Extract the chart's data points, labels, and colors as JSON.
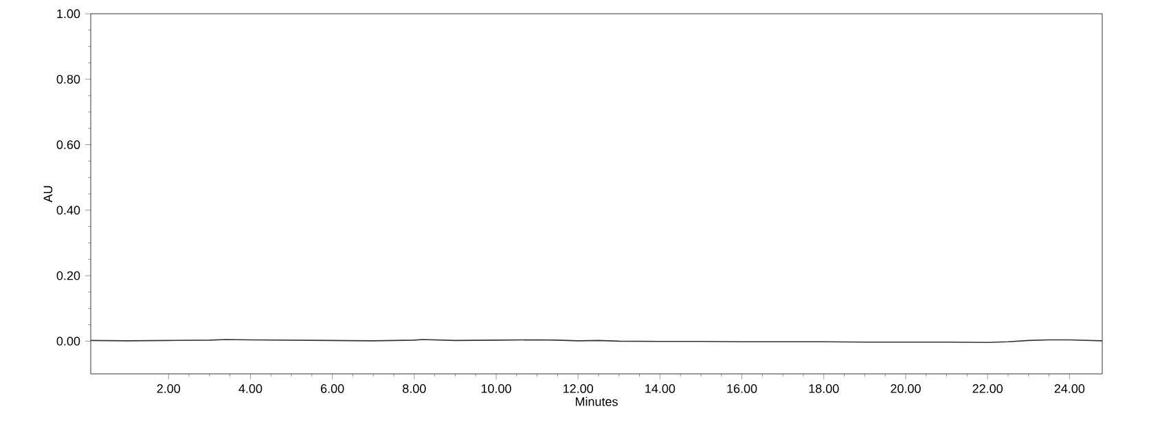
{
  "chart_data": {
    "type": "line",
    "xlabel": "Minutes",
    "ylabel": "AU",
    "color": "#333333",
    "x": [
      0.1,
      1,
      2,
      3,
      3.4,
      4,
      5,
      6,
      7,
      8,
      8.2,
      9,
      10,
      11,
      11.5,
      12,
      12.5,
      13,
      14,
      15,
      16,
      17,
      18,
      19,
      20,
      21,
      22,
      22.5,
      23,
      23.5,
      24,
      24.8
    ],
    "values": [
      0.002,
      0.001,
      0.002,
      0.003,
      0.005,
      0.004,
      0.003,
      0.002,
      0.001,
      0.003,
      0.005,
      0.002,
      0.003,
      0.004,
      0.003,
      0.001,
      0.002,
      0.0,
      -0.001,
      -0.001,
      -0.002,
      -0.002,
      -0.002,
      -0.003,
      -0.003,
      -0.003,
      -0.004,
      -0.002,
      0.002,
      0.004,
      0.004,
      0.001
    ],
    "xlim": [
      0.1,
      24.8
    ],
    "ylim": [
      -0.1,
      1.0
    ],
    "xticks": [
      {
        "value": 2,
        "label": "2.00"
      },
      {
        "value": 4,
        "label": "4.00"
      },
      {
        "value": 6,
        "label": "6.00"
      },
      {
        "value": 8,
        "label": "8.00"
      },
      {
        "value": 10,
        "label": "10.00"
      },
      {
        "value": 12,
        "label": "12.00"
      },
      {
        "value": 14,
        "label": "14.00"
      },
      {
        "value": 16,
        "label": "16.00"
      },
      {
        "value": 18,
        "label": "18.00"
      },
      {
        "value": 20,
        "label": "20.00"
      },
      {
        "value": 22,
        "label": "22.00"
      },
      {
        "value": 24,
        "label": "24.00"
      }
    ],
    "yticks": [
      {
        "value": 0,
        "label": "0.00"
      },
      {
        "value": 0.2,
        "label": "0.20"
      },
      {
        "value": 0.4,
        "label": "0.40"
      },
      {
        "value": 0.6,
        "label": "0.60"
      },
      {
        "value": 0.8,
        "label": "0.80"
      },
      {
        "value": 1.0,
        "label": "1.00"
      }
    ],
    "marker": "none",
    "line_style": "solid"
  }
}
